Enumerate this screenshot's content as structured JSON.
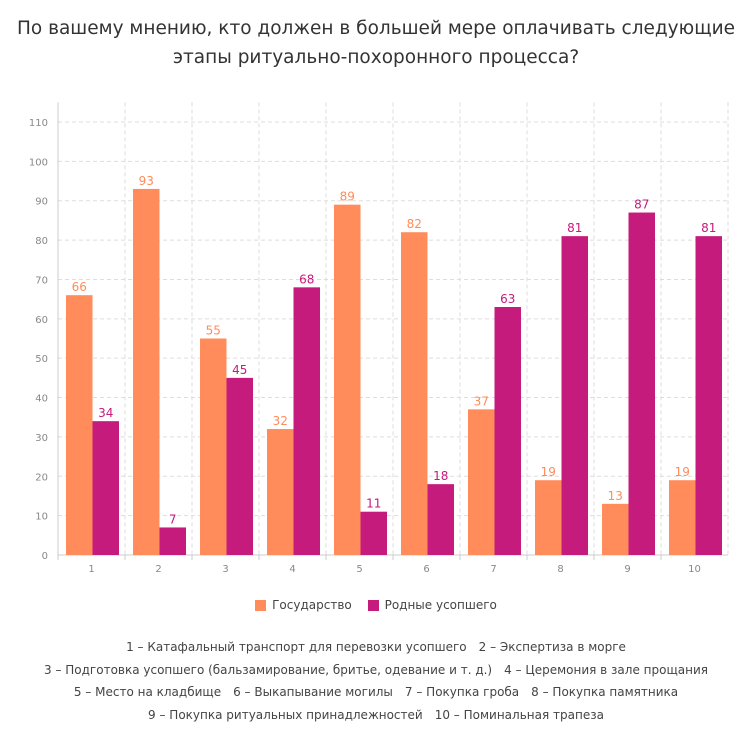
{
  "chart_data": {
    "type": "bar",
    "title": "По вашему мнению, кто должен в большей мере оплачивать следующие этапы ритуально-похоронного процесса?",
    "title_lines": [
      "По вашему мнению, кто должен в большей мере оплачивать следующие",
      "этапы ритуально-похоронного процесса?"
    ],
    "categories": [
      "1",
      "2",
      "3",
      "4",
      "5",
      "6",
      "7",
      "8",
      "9",
      "10"
    ],
    "series": [
      {
        "name": "Государство",
        "color": "#ff8c5a",
        "values": [
          66,
          93,
          55,
          32,
          89,
          82,
          37,
          19,
          13,
          19
        ]
      },
      {
        "name": "Родные усопшего",
        "color": "#c51b7d",
        "values": [
          34,
          7,
          45,
          68,
          11,
          18,
          63,
          81,
          87,
          81
        ]
      }
    ],
    "ylim": [
      0,
      115
    ],
    "yticks": [
      0,
      10,
      20,
      30,
      40,
      50,
      60,
      70,
      80,
      90,
      100,
      110
    ],
    "grid": true,
    "legend_position": "bottom",
    "data_labels": true,
    "notes": [
      [
        "1 – Катафальный транспорт для перевозки усопшего",
        "2 – Экспертиза в морге"
      ],
      [
        "3 – Подготовка усопшего (бальзамирование, бритье, одевание и т. д.)",
        "4 – Церемония в зале прощания"
      ],
      [
        "5 – Место на кладбище",
        "6 – Выкапывание могилы",
        "7 – Покупка гроба",
        "8 – Покупка памятника"
      ],
      [
        "9 – Покупка ритуальных принадлежностей",
        "10 – Поминальная трапеза"
      ]
    ]
  }
}
